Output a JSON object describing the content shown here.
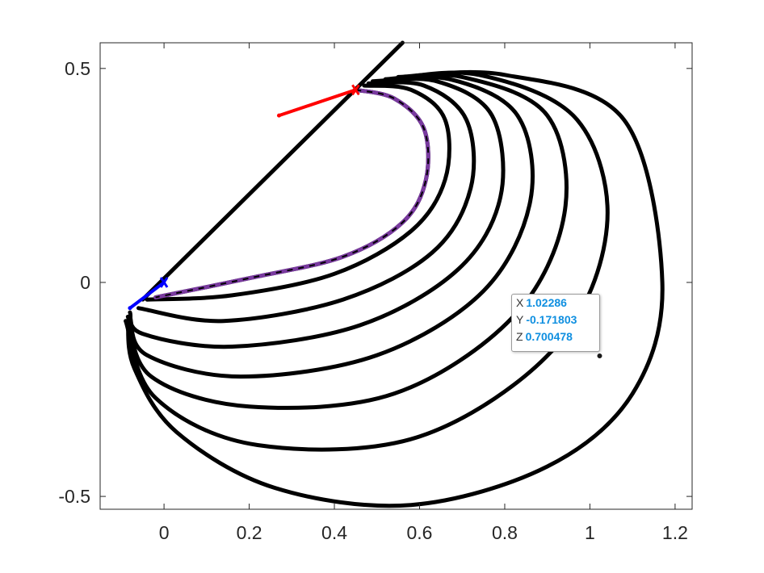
{
  "chart_data": {
    "type": "line",
    "title": "",
    "xlabel": "",
    "ylabel": "",
    "xlim": [
      -0.15,
      1.24
    ],
    "ylim": [
      -0.53,
      0.56
    ],
    "xticks": [
      0,
      0.2,
      0.4,
      0.6,
      0.8,
      1,
      1.2
    ],
    "xtick_labels": [
      "0",
      "0.2",
      "0.4",
      "0.6",
      "0.8",
      "1",
      "1.2"
    ],
    "yticks": [
      -0.5,
      0,
      0.5
    ],
    "ytick_labels": [
      "-0.5",
      "0",
      "0.5"
    ],
    "grid": false,
    "colors": {
      "curves": "#000000",
      "highlight": "#7a3aa0",
      "red_arrow": "#ff0000",
      "blue_arrow": "#0000ff"
    },
    "tangent_line": {
      "x": [
        -0.05,
        0.56
      ],
      "y": [
        -0.04,
        0.56
      ]
    },
    "red_arrow": {
      "from": [
        0.45,
        0.45
      ],
      "to": [
        0.27,
        0.39
      ]
    },
    "blue_arrow": {
      "from": [
        0.0,
        0.0
      ],
      "to": [
        -0.08,
        -0.06
      ]
    },
    "curves": [
      {
        "apex": [
          0.46,
          0.455
        ],
        "x": [
          0.45,
          0.54,
          0.61,
          0.615,
          0.56,
          0.42,
          0.2,
          -0.02
        ],
        "y": [
          0.45,
          0.43,
          0.36,
          0.24,
          0.14,
          0.06,
          0.01,
          -0.035
        ]
      },
      {
        "apex": [
          0.46,
          0.455
        ],
        "x": [
          0.47,
          0.58,
          0.66,
          0.66,
          0.58,
          0.4,
          0.16,
          -0.04
        ],
        "y": [
          0.46,
          0.45,
          0.38,
          0.24,
          0.12,
          0.02,
          -0.03,
          -0.04
        ]
      },
      {
        "apex": [
          0.46,
          0.455
        ],
        "x": [
          0.48,
          0.61,
          0.71,
          0.72,
          0.63,
          0.42,
          0.14,
          -0.06
        ],
        "y": [
          0.465,
          0.46,
          0.38,
          0.22,
          0.07,
          -0.04,
          -0.09,
          -0.06
        ]
      },
      {
        "apex": [
          0.46,
          0.455
        ],
        "x": [
          0.49,
          0.64,
          0.77,
          0.79,
          0.69,
          0.46,
          0.16,
          -0.05,
          -0.08
        ],
        "y": [
          0.47,
          0.47,
          0.39,
          0.2,
          0.03,
          -0.1,
          -0.15,
          -0.12,
          -0.07
        ]
      },
      {
        "apex": [
          0.46,
          0.455
        ],
        "x": [
          0.5,
          0.67,
          0.83,
          0.86,
          0.75,
          0.5,
          0.18,
          -0.04,
          -0.08
        ],
        "y": [
          0.47,
          0.475,
          0.39,
          0.19,
          -0.02,
          -0.17,
          -0.22,
          -0.17,
          -0.08
        ]
      },
      {
        "apex": [
          0.46,
          0.455
        ],
        "x": [
          0.52,
          0.7,
          0.9,
          0.94,
          0.82,
          0.54,
          0.2,
          -0.03,
          -0.085
        ],
        "y": [
          0.475,
          0.48,
          0.39,
          0.16,
          -0.08,
          -0.26,
          -0.29,
          -0.22,
          -0.08
        ]
      },
      {
        "apex": [
          0.46,
          0.455
        ],
        "x": [
          0.53,
          0.74,
          0.97,
          1.04,
          0.92,
          0.6,
          0.22,
          -0.02,
          -0.09
        ],
        "y": [
          0.475,
          0.485,
          0.38,
          0.13,
          -0.15,
          -0.36,
          -0.38,
          -0.27,
          -0.09
        ]
      },
      {
        "apex": [
          0.46,
          0.455
        ],
        "x": [
          0.55,
          0.8,
          1.08,
          1.17,
          1.1,
          0.9,
          0.58,
          0.26,
          0.03,
          -0.07,
          -0.085
        ],
        "y": [
          0.48,
          0.485,
          0.38,
          0.0,
          -0.26,
          -0.43,
          -0.52,
          -0.48,
          -0.35,
          -0.2,
          -0.09
        ]
      }
    ],
    "datatip": {
      "point": [
        1.02286,
        -0.171803
      ],
      "rows": [
        {
          "key": "X",
          "value": "1.02286"
        },
        {
          "key": "Y",
          "value": "-0.171803"
        },
        {
          "key": "Z",
          "value": "0.700478"
        }
      ]
    }
  }
}
